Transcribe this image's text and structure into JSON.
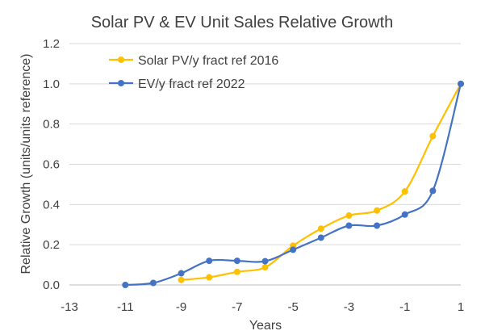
{
  "chart_data": {
    "type": "line",
    "title": "Solar PV & EV Unit Sales Relative Growth",
    "xlabel": "Years",
    "ylabel": "Relative Growth (units/units reference)",
    "xlim": [
      -13,
      1
    ],
    "ylim": [
      0,
      1.2
    ],
    "x_ticks": [
      -13,
      -11,
      -9,
      -7,
      -5,
      -3,
      -1,
      1
    ],
    "y_ticks": [
      0.0,
      0.2,
      0.4,
      0.6,
      0.8,
      1.0,
      1.2
    ],
    "y_tick_labels": [
      "0.0",
      "0.2",
      "0.4",
      "0.6",
      "0.8",
      "1.0",
      "1.2"
    ],
    "grid": "horizontal",
    "legend_position": "top-left",
    "series": [
      {
        "name": "Solar PV/y fract ref 2016",
        "color": "#FFC000",
        "x": [
          -9,
          -8,
          -7,
          -6,
          -5,
          -4,
          -3,
          -2,
          -1,
          0,
          1
        ],
        "y": [
          0.025,
          0.038,
          0.065,
          0.088,
          0.195,
          0.28,
          0.345,
          0.37,
          0.465,
          0.74,
          1.0
        ]
      },
      {
        "name": "EV/y fract ref 2022",
        "color": "#4472C4",
        "x": [
          -11,
          -10,
          -9,
          -8,
          -7,
          -6,
          -5,
          -4,
          -3,
          -2,
          -1,
          0,
          1
        ],
        "y": [
          0.0,
          0.01,
          0.058,
          0.12,
          0.12,
          0.118,
          0.175,
          0.235,
          0.295,
          0.295,
          0.35,
          0.468,
          1.0
        ]
      }
    ]
  }
}
